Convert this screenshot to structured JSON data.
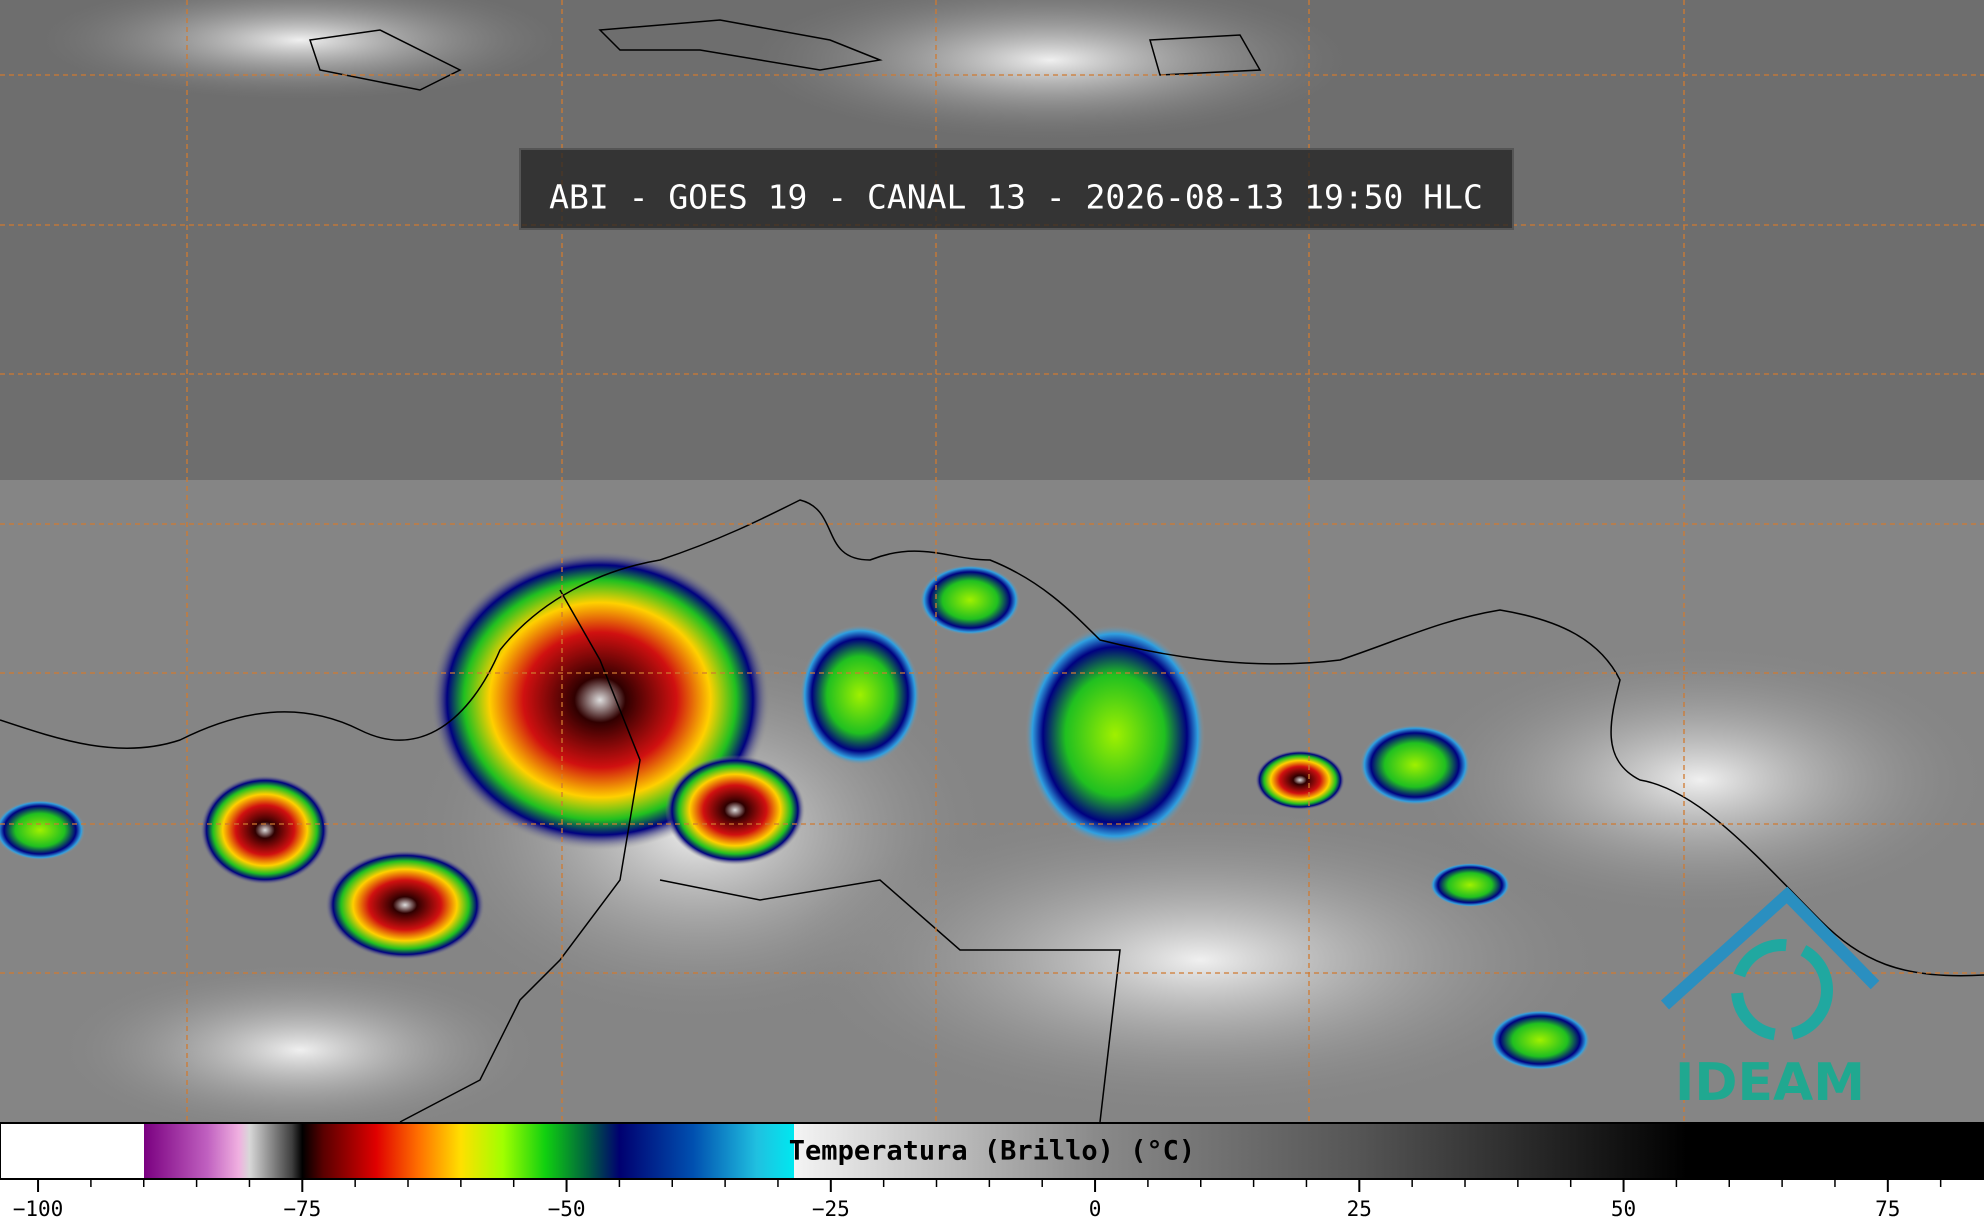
{
  "title": "ABI - GOES 19 - CANAL 13 - 2026-08-13 19:50 HLC",
  "logo": "IDEAM",
  "colorbar": {
    "label": "Temperatura (Brillo) (°C)",
    "range": [
      -103.6,
      84.1
    ],
    "ticks": [
      {
        "value": -100,
        "label": "−100"
      },
      {
        "value": -75,
        "label": "−75"
      },
      {
        "value": -50,
        "label": "−50"
      },
      {
        "value": -25,
        "label": "−25"
      },
      0,
      25,
      50,
      75
    ],
    "minor_ticks": [
      -95,
      -90,
      -85,
      -80,
      -70,
      -65,
      -60,
      -55,
      -45,
      -40,
      -35,
      -30,
      -20,
      -15,
      -10,
      -5,
      5,
      10,
      15,
      20,
      30,
      35,
      40,
      45,
      55,
      60,
      65,
      70,
      80
    ],
    "colormap": [
      {
        "value": -103.6,
        "color": "#ffffff"
      },
      {
        "value": -90,
        "color": "#ffffff"
      },
      {
        "value": -90,
        "color": "#7a0080"
      },
      {
        "value": -84,
        "color": "#c060c0"
      },
      {
        "value": -81,
        "color": "#f0b0e0"
      },
      {
        "value": -80,
        "color": "#d8d8d8"
      },
      {
        "value": -76,
        "color": "#404040"
      },
      {
        "value": -75,
        "color": "#000000"
      },
      {
        "value": -73,
        "color": "#5a0000"
      },
      {
        "value": -68,
        "color": "#e00000"
      },
      {
        "value": -64,
        "color": "#ff7000"
      },
      {
        "value": -60,
        "color": "#ffe000"
      },
      {
        "value": -56,
        "color": "#a0ff00"
      },
      {
        "value": -52,
        "color": "#10d010"
      },
      {
        "value": -48,
        "color": "#006040"
      },
      {
        "value": -45,
        "color": "#000070"
      },
      {
        "value": -38,
        "color": "#0050b0"
      },
      {
        "value": -32,
        "color": "#20c0e0"
      },
      {
        "value": -28.5,
        "color": "#00e8f0"
      },
      {
        "value": -28.5,
        "color": "#f4f4f4"
      },
      {
        "value": 0,
        "color": "#8a8a8a"
      },
      {
        "value": 25,
        "color": "#555555"
      },
      {
        "value": 50,
        "color": "#111111"
      },
      {
        "value": 56,
        "color": "#000000"
      },
      {
        "value": 84.1,
        "color": "#000000"
      }
    ]
  }
}
